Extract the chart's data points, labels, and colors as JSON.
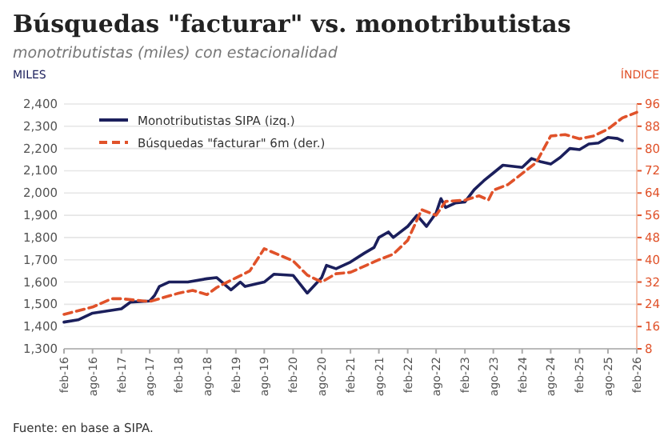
{
  "chart_data": {
    "type": "line",
    "title": "Búsquedas \"facturar\" vs. monotributistas",
    "subtitle": "monotributistas (miles) con estacionalidad",
    "ylabel": "MILES",
    "y2label": "ÍNDICE",
    "annotations": [
      "Fuente: en base a SIPA."
    ],
    "xlim": [
      "2016-02",
      "2026-02"
    ],
    "xticks": [
      {
        "value": "2016-02",
        "label": "feb-16"
      },
      {
        "value": "2016-08",
        "label": "ago-16"
      },
      {
        "value": "2017-02",
        "label": "feb-17"
      },
      {
        "value": "2017-08",
        "label": "ago-17"
      },
      {
        "value": "2018-02",
        "label": "feb-18"
      },
      {
        "value": "2018-08",
        "label": "ago-18"
      },
      {
        "value": "2019-02",
        "label": "feb-19"
      },
      {
        "value": "2019-08",
        "label": "ago-19"
      },
      {
        "value": "2020-02",
        "label": "feb-20"
      },
      {
        "value": "2020-08",
        "label": "ago-20"
      },
      {
        "value": "2021-02",
        "label": "feb-21"
      },
      {
        "value": "2021-08",
        "label": "ago-21"
      },
      {
        "value": "2022-02",
        "label": "feb-22"
      },
      {
        "value": "2022-08",
        "label": "ago-22"
      },
      {
        "value": "2023-02",
        "label": "feb-23"
      },
      {
        "value": "2023-08",
        "label": "ago-23"
      },
      {
        "value": "2024-02",
        "label": "feb-24"
      },
      {
        "value": "2024-08",
        "label": "ago-24"
      },
      {
        "value": "2025-02",
        "label": "feb-25"
      },
      {
        "value": "2025-08",
        "label": "ago-25"
      },
      {
        "value": "2026-02",
        "label": "feb-26"
      }
    ],
    "ylim": [
      1300,
      2400
    ],
    "yticks": [
      {
        "value": 1300,
        "label": "1,300"
      },
      {
        "value": 1400,
        "label": "1,400"
      },
      {
        "value": 1500,
        "label": "1,500"
      },
      {
        "value": 1600,
        "label": "1,600"
      },
      {
        "value": 1700,
        "label": "1,700"
      },
      {
        "value": 1800,
        "label": "1,800"
      },
      {
        "value": 1900,
        "label": "1,900"
      },
      {
        "value": 2000,
        "label": "2,000"
      },
      {
        "value": 2100,
        "label": "2,100"
      },
      {
        "value": 2200,
        "label": "2,200"
      },
      {
        "value": 2300,
        "label": "2,300"
      },
      {
        "value": 2400,
        "label": "2,400"
      }
    ],
    "y2lim": [
      8,
      96
    ],
    "y2ticks": [
      8,
      16,
      24,
      32,
      40,
      48,
      56,
      64,
      72,
      80,
      88,
      96
    ],
    "grid": "y",
    "legend": "top left",
    "marker": "none",
    "series": [
      {
        "name": "Monotributistas SIPA (izq.)",
        "color": "#1b1f5c",
        "line_style": "solid",
        "x": [
          "2016-02",
          "2016-05",
          "2016-08",
          "2017-02",
          "2017-04",
          "2017-08",
          "2017-09",
          "2017-10",
          "2017-12",
          "2018-04",
          "2018-08",
          "2018-10",
          "2019-01",
          "2019-03",
          "2019-04",
          "2019-08",
          "2019-10",
          "2020-02",
          "2020-05",
          "2020-08",
          "2020-09",
          "2020-11",
          "2021-02",
          "2021-05",
          "2021-07",
          "2021-08",
          "2021-10",
          "2021-11",
          "2022-02",
          "2022-04",
          "2022-06",
          "2022-08",
          "2022-09",
          "2022-10",
          "2022-12",
          "2023-02",
          "2023-04",
          "2023-06",
          "2023-08",
          "2023-10",
          "2024-02",
          "2024-04",
          "2024-06",
          "2024-08",
          "2024-10",
          "2024-12",
          "2025-02",
          "2025-04",
          "2025-06",
          "2025-08",
          "2025-10",
          "2025-11"
        ],
        "values": [
          1420,
          1430,
          1460,
          1480,
          1510,
          1515,
          1540,
          1580,
          1600,
          1600,
          1615,
          1620,
          1565,
          1600,
          1580,
          1600,
          1635,
          1630,
          1550,
          1620,
          1675,
          1660,
          1690,
          1730,
          1755,
          1800,
          1825,
          1800,
          1850,
          1900,
          1850,
          1910,
          1975,
          1935,
          1955,
          1960,
          2015,
          2055,
          2090,
          2125,
          2115,
          2155,
          2140,
          2130,
          2160,
          2200,
          2195,
          2220,
          2225,
          2250,
          2245,
          2235
        ]
      },
      {
        "name": "Búsquedas \"facturar\" 6m (der.)",
        "color": "#e0522a",
        "line_style": "dashed",
        "axis": "y2",
        "x": [
          "2016-02",
          "2016-08",
          "2016-12",
          "2017-02",
          "2017-08",
          "2018-02",
          "2018-05",
          "2018-08",
          "2018-10",
          "2019-02",
          "2019-05",
          "2019-08",
          "2020-02",
          "2020-05",
          "2020-08",
          "2020-11",
          "2021-02",
          "2021-08",
          "2021-11",
          "2022-02",
          "2022-05",
          "2022-08",
          "2022-10",
          "2023-02",
          "2023-05",
          "2023-07",
          "2023-08",
          "2023-11",
          "2024-02",
          "2024-05",
          "2024-08",
          "2024-11",
          "2025-02",
          "2025-05",
          "2025-08",
          "2025-11",
          "2026-02"
        ],
        "values": [
          20.4,
          23,
          26,
          26,
          25,
          28,
          29,
          27.5,
          30,
          33.5,
          36,
          44,
          39.6,
          34.5,
          32,
          35,
          35.5,
          40,
          42,
          47,
          58,
          56,
          61,
          61.4,
          63,
          61.5,
          65,
          67,
          71,
          75,
          84.5,
          85,
          83.5,
          84.5,
          87,
          91,
          93
        ]
      }
    ]
  }
}
